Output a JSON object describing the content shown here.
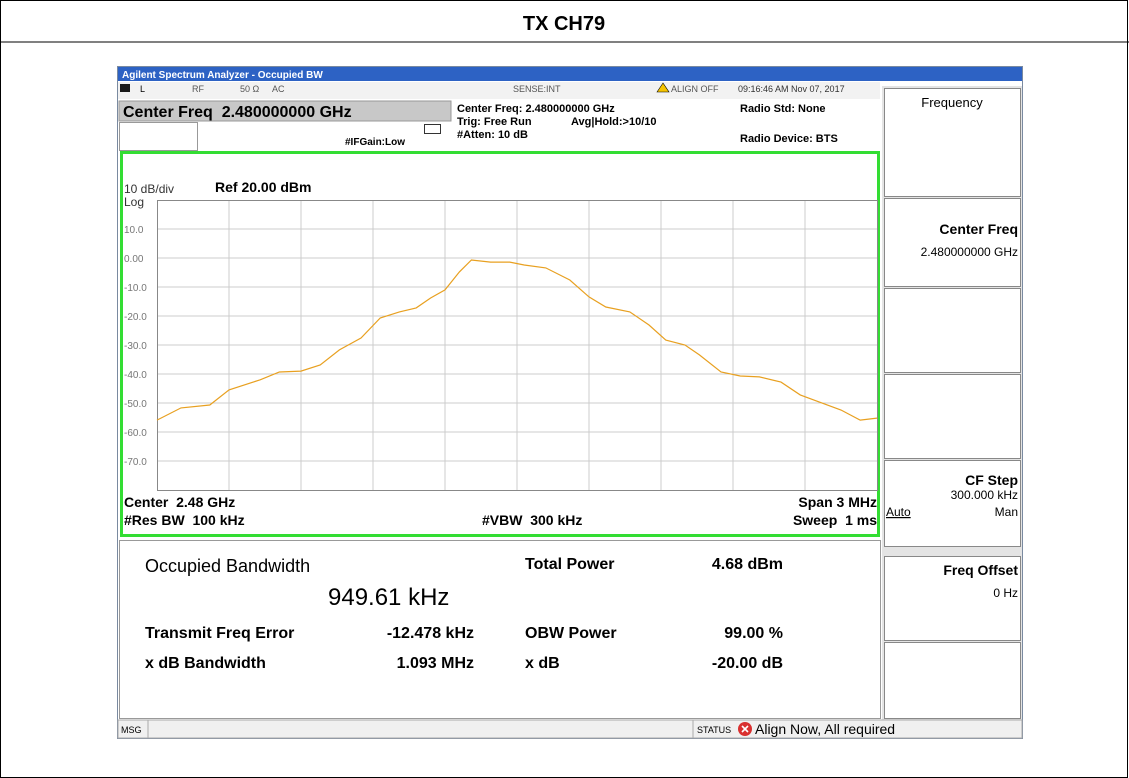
{
  "header": {
    "title": "TX CH79"
  },
  "window": {
    "title": "Agilent Spectrum Analyzer - Occupied BW"
  },
  "status_bar": {
    "input": "L",
    "rf": "RF",
    "impedance": "50 Ω",
    "coupling": "AC",
    "sense": "SENSE:INT",
    "align": "ALIGN OFF",
    "time": "09:16:46 AM Nov 07, 2017"
  },
  "settings": {
    "center_freq_box": "Center Freq  2.480000000 GHz",
    "if_gain": "#IFGain:Low",
    "center_freq": "Center Freq: 2.480000000 GHz",
    "trig": "Trig: Free Run",
    "avg_hold": "Avg|Hold:>10/10",
    "atten": "#Atten: 10 dB",
    "radio_std": "Radio Std: None",
    "radio_device": "Radio Device: BTS"
  },
  "chart_data": {
    "type": "line",
    "scale_label": "10 dB/div",
    "log_label": "Log",
    "ref_label": "Ref 20.00 dBm",
    "x": [
      2478.5,
      2478.6,
      2478.72,
      2478.8,
      2478.93,
      2479.01,
      2479.1,
      2479.18,
      2479.26,
      2479.35,
      2479.43,
      2479.51,
      2479.58,
      2479.64,
      2479.7,
      2479.76,
      2479.81,
      2479.89,
      2479.97,
      2480.03,
      2480.12,
      2480.22,
      2480.3,
      2480.37,
      2480.47,
      2480.55,
      2480.62,
      2480.7,
      2480.76,
      2480.85,
      2480.93,
      2481.01,
      2481.1,
      2481.18,
      2481.26,
      2481.35,
      2481.43,
      2481.5
    ],
    "values": [
      -55.9,
      -51.7,
      -50.7,
      -45.5,
      -42,
      -39.3,
      -39,
      -36.9,
      -31.7,
      -27.6,
      -20.7,
      -18.6,
      -17.2,
      -13.8,
      -11,
      -4.8,
      -0.7,
      -1.4,
      -1.4,
      -2.4,
      -3.4,
      -7.6,
      -13.4,
      -16.9,
      -18.6,
      -23.1,
      -28.3,
      -30,
      -33.4,
      -39.3,
      -40.7,
      -41,
      -42.8,
      -47.2,
      -49.7,
      -52.4,
      -55.9,
      -55.2
    ],
    "color": "#e8a020",
    "xlim": [
      2478.5,
      2481.5
    ],
    "ylim": [
      -80,
      20
    ],
    "yticks": [
      {
        "value": 10,
        "label": "10.0"
      },
      {
        "value": 0,
        "label": "0.00"
      },
      {
        "value": -10,
        "label": "-10.0"
      },
      {
        "value": -20,
        "label": "-20.0"
      },
      {
        "value": -30,
        "label": "-30.0"
      },
      {
        "value": -40,
        "label": "-40.0"
      },
      {
        "value": -50,
        "label": "-50.0"
      },
      {
        "value": -60,
        "label": "-60.0"
      },
      {
        "value": -70,
        "label": "-70.0"
      }
    ],
    "grid": true,
    "center_label": "Center  2.48 GHz",
    "span_label": "Span 3 MHz",
    "res_bw_label": "#Res BW  100 kHz",
    "vbw_label": "#VBW  300 kHz",
    "sweep_label": "Sweep  1 ms"
  },
  "results": {
    "title": "Occupied Bandwidth",
    "obw": "949.61 kHz",
    "total_power_label": "Total Power",
    "total_power": "4.68 dBm",
    "rows": [
      [
        "Transmit Freq Error",
        "-12.478 kHz",
        "OBW Power",
        "99.00 %"
      ],
      [
        "x dB Bandwidth",
        "1.093 MHz",
        "x dB",
        "-20.00 dB"
      ]
    ]
  },
  "softkeys": {
    "menu_title": "Frequency",
    "center_freq": {
      "label": "Center Freq",
      "value": "2.480000000 GHz"
    },
    "cf_step": {
      "label": "CF Step",
      "value": "300.000 kHz",
      "auto": "Auto",
      "man": "Man"
    },
    "freq_offset": {
      "label": "Freq Offset",
      "value": "0 Hz"
    }
  },
  "message_bar": {
    "msg": "MSG",
    "status": "STATUS",
    "message": "Align Now, All required"
  }
}
